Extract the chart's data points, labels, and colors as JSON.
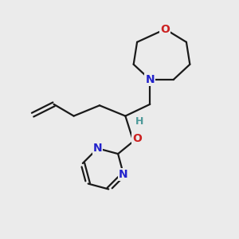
{
  "bg_color": "#ebebeb",
  "bond_color": "#1a1a1a",
  "N_color": "#2222cc",
  "O_color": "#cc2222",
  "H_color": "#4d9999",
  "line_width": 1.6,
  "font_size_atom": 10,
  "figsize": [
    3.0,
    3.0
  ],
  "dpi": 100,
  "xlim": [
    0,
    10
  ],
  "ylim": [
    0,
    10
  ]
}
